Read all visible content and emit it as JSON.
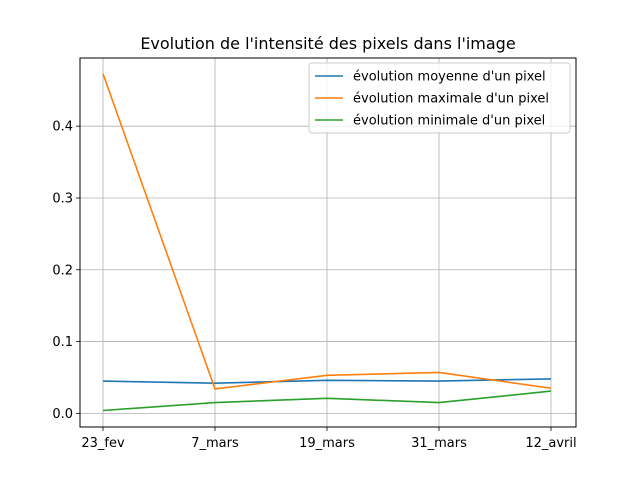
{
  "chart_data": {
    "type": "line",
    "title": "Evolution de l'intensité des pixels dans l'image",
    "xlabel": "",
    "ylabel": "",
    "categories": [
      "23_fev",
      "7_mars",
      "19_mars",
      "31_mars",
      "12_avril"
    ],
    "ylim": [
      -0.019,
      0.495
    ],
    "yticks": [
      "0.0",
      "0.1",
      "0.2",
      "0.3",
      "0.4"
    ],
    "grid": true,
    "legend_position": "top-right",
    "series": [
      {
        "name": "évolution moyenne d'un pixel",
        "color": "#1f77b4",
        "values": [
          0.045,
          0.042,
          0.046,
          0.045,
          0.048
        ]
      },
      {
        "name": "évolution maximale d'un pixel",
        "color": "#ff7f0e",
        "values": [
          0.473,
          0.034,
          0.053,
          0.057,
          0.035
        ]
      },
      {
        "name": "évolution minimale d'un pixel",
        "color": "#2ca02c",
        "values": [
          0.004,
          0.015,
          0.021,
          0.015,
          0.031
        ]
      }
    ]
  }
}
